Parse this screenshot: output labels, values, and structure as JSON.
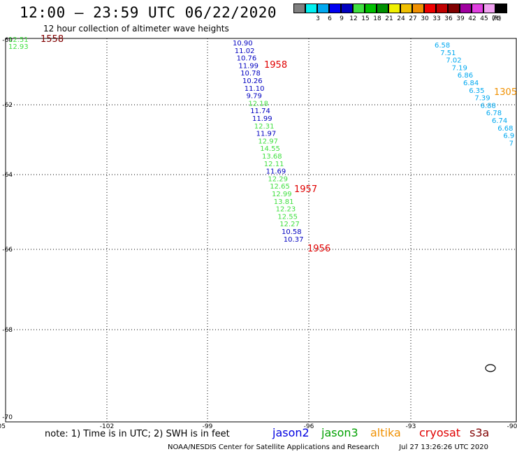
{
  "header": {
    "title": "12:00 – 23:59 UTC 06/22/2020",
    "subtitle": "12 hour collection of altimeter wave heights"
  },
  "legend": {
    "swatches": [
      {
        "color": "#808080",
        "label": ""
      },
      {
        "color": "#00f0f0",
        "label": "3"
      },
      {
        "color": "#00a8f0",
        "label": "6"
      },
      {
        "color": "#0000f0",
        "label": "9"
      },
      {
        "color": "#0000c0",
        "label": "12"
      },
      {
        "color": "#40e040",
        "label": "15"
      },
      {
        "color": "#00c000",
        "label": "18"
      },
      {
        "color": "#009000",
        "label": "21"
      },
      {
        "color": "#f0f000",
        "label": "24"
      },
      {
        "color": "#f0c000",
        "label": "27"
      },
      {
        "color": "#f09000",
        "label": "30"
      },
      {
        "color": "#f00000",
        "label": "33"
      },
      {
        "color": "#c00000",
        "label": "36"
      },
      {
        "color": "#800000",
        "label": "39"
      },
      {
        "color": "#a000a0",
        "label": "42"
      },
      {
        "color": "#e040e0",
        "label": "45"
      },
      {
        "color": "#f0a0f0",
        "label": "70"
      },
      {
        "color": "#000000",
        "label": ""
      }
    ],
    "unit": "(ft)"
  },
  "axes": {
    "x_ticks": [
      "-105",
      "-102",
      "-99",
      "-96",
      "-93",
      "-90"
    ],
    "y_ticks": [
      "-60",
      "-62",
      "-64",
      "-66",
      "-68",
      "-70"
    ]
  },
  "times": [
    {
      "text": "1558",
      "color": "#800000"
    },
    {
      "text": "1958",
      "color": "#e00000"
    },
    {
      "text": "1957",
      "color": "#e00000"
    },
    {
      "text": "1956",
      "color": "#e00000"
    },
    {
      "text": "1305",
      "color": "#f09000"
    }
  ],
  "track_left": [
    {
      "text": "12.51",
      "color": "#40e040"
    },
    {
      "text": "12.93",
      "color": "#40e040"
    }
  ],
  "track_center": [
    {
      "text": "10.90",
      "color": "#0000c0"
    },
    {
      "text": "11.02",
      "color": "#0000c0"
    },
    {
      "text": "10.76",
      "color": "#0000c0"
    },
    {
      "text": "11.99",
      "color": "#0000c0"
    },
    {
      "text": "10.78",
      "color": "#0000c0"
    },
    {
      "text": "10.26",
      "color": "#0000c0"
    },
    {
      "text": "11.10",
      "color": "#0000c0"
    },
    {
      "text": "9.79",
      "color": "#0000c0"
    },
    {
      "text": "12.18",
      "color": "#40e040"
    },
    {
      "text": "11.74",
      "color": "#0000c0"
    },
    {
      "text": "11.99",
      "color": "#0000c0"
    },
    {
      "text": "12.31",
      "color": "#40e040"
    },
    {
      "text": "11.97",
      "color": "#0000c0"
    },
    {
      "text": "12.97",
      "color": "#40e040"
    },
    {
      "text": "14.55",
      "color": "#40e040"
    },
    {
      "text": "13.68",
      "color": "#40e040"
    },
    {
      "text": "12.11",
      "color": "#40e040"
    },
    {
      "text": "11.69",
      "color": "#0000c0"
    },
    {
      "text": "12.29",
      "color": "#40e040"
    },
    {
      "text": "12.65",
      "color": "#40e040"
    },
    {
      "text": "12.99",
      "color": "#40e040"
    },
    {
      "text": "13.81",
      "color": "#40e040"
    },
    {
      "text": "12.23",
      "color": "#40e040"
    },
    {
      "text": "12.55",
      "color": "#40e040"
    },
    {
      "text": "12.27",
      "color": "#40e040"
    },
    {
      "text": "10.58",
      "color": "#0000c0"
    },
    {
      "text": "10.37",
      "color": "#0000c0"
    }
  ],
  "track_right": [
    {
      "text": "6.58",
      "color": "#00a8f0"
    },
    {
      "text": "7.51",
      "color": "#00a8f0"
    },
    {
      "text": "7.02",
      "color": "#00a8f0"
    },
    {
      "text": "7.19",
      "color": "#00a8f0"
    },
    {
      "text": "6.86",
      "color": "#00a8f0"
    },
    {
      "text": "6.84",
      "color": "#00a8f0"
    },
    {
      "text": "6.35",
      "color": "#00a8f0"
    },
    {
      "text": "7.39",
      "color": "#00a8f0"
    },
    {
      "text": "6.88",
      "color": "#00a8f0"
    },
    {
      "text": "6.78",
      "color": "#00a8f0"
    },
    {
      "text": "6.74",
      "color": "#00a8f0"
    },
    {
      "text": "6.68",
      "color": "#00a8f0"
    },
    {
      "text": "6.9",
      "color": "#00a8f0"
    },
    {
      "text": "7",
      "color": "#00a8f0"
    }
  ],
  "footer": {
    "note": "note: 1) Time is in UTC; 2) SWH is in feet",
    "satellites": [
      {
        "name": "jason2",
        "color": "#0000e0"
      },
      {
        "name": "jason3",
        "color": "#00a000"
      },
      {
        "name": "altika",
        "color": "#f09000"
      },
      {
        "name": "cryosat",
        "color": "#e00000"
      },
      {
        "name": "s3a",
        "color": "#800000"
      }
    ],
    "credit": "NOAA/NESDIS Center for Satellite Applications and Research",
    "timestamp": "Jul 27 13:26:26 UTC 2020"
  }
}
